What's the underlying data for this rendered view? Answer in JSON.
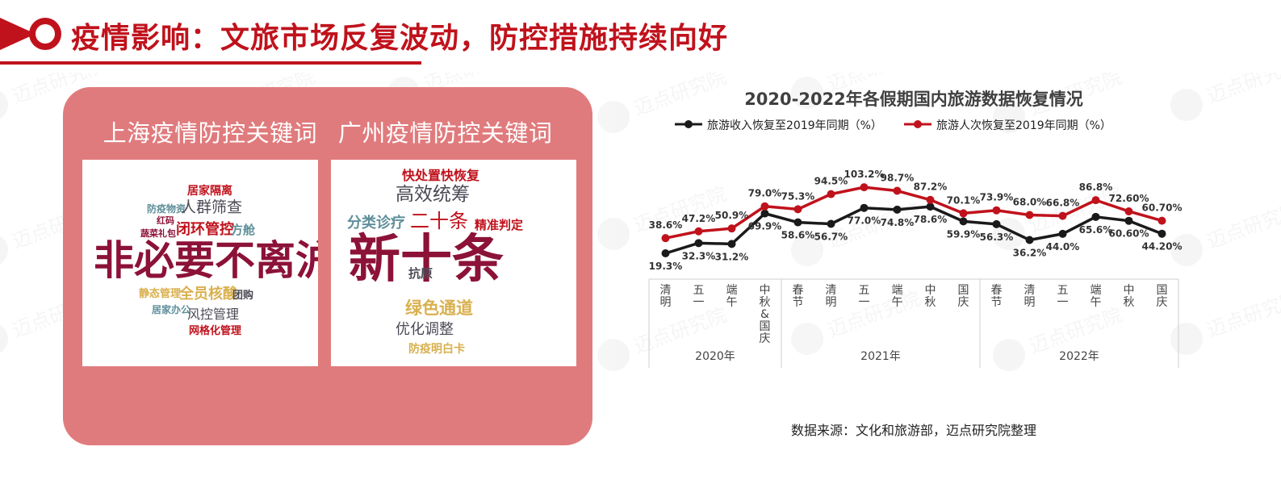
{
  "header": {
    "title": "疫情影响：文旅市场反复波动，防控措施持续向好",
    "accent_color": "#c0121c",
    "icon": "flag-circle-icon"
  },
  "watermark": {
    "text": "迈点研究院"
  },
  "left_panel": {
    "background_color": "#e07b7d",
    "headings": [
      "上海疫情防控关键词",
      "广州疫情防控关键词"
    ],
    "shanghai_words": [
      "居家隔离",
      "防疫物资",
      "人群筛查",
      "红码",
      "蔬菜礼包",
      "闭环管控",
      "方舱",
      "非必要不离沪",
      "静态管理",
      "全员核酸",
      "团购",
      "居家办公",
      "风控管理",
      "网格化管理"
    ],
    "guangzhou_words": [
      "快处置快恢复",
      "高效统筹",
      "分类诊疗",
      "二十条",
      "精准判定",
      "新十条",
      "抗原",
      "绿色通道",
      "优化调整",
      "防疫明白卡"
    ]
  },
  "chart_data": {
    "type": "line",
    "title": "2020-2022年各假期国内旅游数据恢复情况",
    "categories": [
      "清明",
      "五一",
      "端午",
      "中秋&国庆",
      "春节",
      "清明",
      "五一",
      "端午",
      "中秋",
      "国庆",
      "春节",
      "清明",
      "五一",
      "端午",
      "中秋",
      "国庆"
    ],
    "groups": [
      {
        "label": "2020年",
        "count": 4
      },
      {
        "label": "2021年",
        "count": 6
      },
      {
        "label": "2022年",
        "count": 6
      }
    ],
    "series": [
      {
        "name": "旅游收入恢复至2019年同期（%）",
        "color": "#1a1a1a",
        "values": [
          19.3,
          32.3,
          31.2,
          69.9,
          58.6,
          56.7,
          77.0,
          74.8,
          78.6,
          59.9,
          56.3,
          36.2,
          44.0,
          65.6,
          60.6,
          44.2
        ],
        "labels": [
          "19.3%",
          "32.3%",
          "31.2%",
          "69.9%",
          "58.6%",
          "56.7%",
          "77.0%",
          "74.8%",
          "78.6%",
          "59.9%",
          "56.3%",
          "36.2%",
          "44.0%",
          "65.6%",
          "60.60%",
          "44.20%"
        ]
      },
      {
        "name": "旅游人次恢复至2019年同期（%）",
        "color": "#c0121c",
        "values": [
          38.6,
          47.2,
          50.9,
          79.0,
          75.3,
          94.5,
          103.2,
          98.7,
          87.2,
          70.1,
          73.9,
          68.0,
          66.8,
          86.8,
          72.6,
          60.7
        ],
        "labels": [
          "38.6%",
          "47.2%",
          "50.9%",
          "79.0%",
          "75.3%",
          "94.5%",
          "103.2%",
          "98.7%",
          "87.2%",
          "70.1%",
          "73.9%",
          "68.0%",
          "66.8%",
          "86.8%",
          "72.60%",
          "60.70%"
        ]
      }
    ],
    "legend_position": "top",
    "grid": false
  },
  "source": "数据来源：文化和旅游部，迈点研究院整理"
}
